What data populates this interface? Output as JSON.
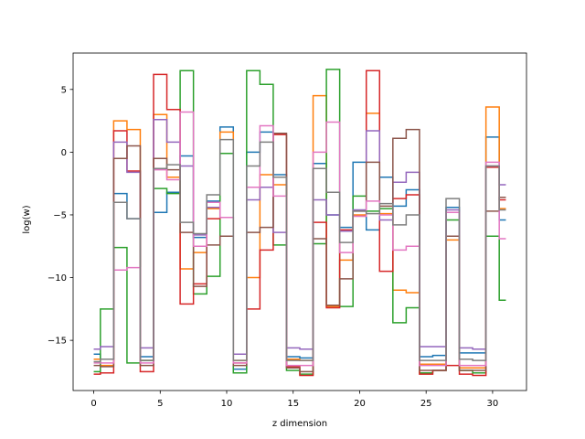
{
  "chart_data": {
    "type": "line",
    "step": "mid",
    "title": "",
    "xlabel": "z dimension",
    "ylabel": "log(w)",
    "xlim": [
      -1.55,
      32.55
    ],
    "ylim": [
      -19,
      7.9
    ],
    "xticks": [
      0,
      5,
      10,
      15,
      20,
      25,
      30
    ],
    "yticks": [
      -15,
      -10,
      -5,
      0,
      5
    ],
    "grid": false,
    "legend": "none",
    "x": [
      0,
      1,
      2,
      3,
      4,
      5,
      6,
      7,
      8,
      9,
      10,
      11,
      12,
      13,
      14,
      15,
      16,
      17,
      18,
      19,
      20,
      21,
      22,
      23,
      24,
      25,
      26,
      27,
      28,
      29,
      30,
      31
    ],
    "series": [
      {
        "color": "#1f77b4",
        "values": [
          -16.1,
          -16.5,
          -3.3,
          -5.3,
          -16.3,
          -4.8,
          -3.2,
          -0.3,
          -6.8,
          -3.9,
          2.0,
          -17.3,
          0.0,
          1.6,
          -1.8,
          -16.3,
          -16.4,
          -0.9,
          -5.0,
          -6.0,
          -0.8,
          -6.2,
          -2.0,
          -4.3,
          -3.0,
          -16.3,
          -16.2,
          -4.4,
          -16.0,
          -16.0,
          1.2,
          -5.4
        ]
      },
      {
        "color": "#ff7f0e",
        "values": [
          -16.5,
          -17.0,
          2.5,
          1.8,
          -16.6,
          3.0,
          -2.0,
          -9.3,
          -8.0,
          -4.5,
          1.6,
          -16.6,
          -10.0,
          -1.8,
          -2.6,
          -16.5,
          -16.6,
          4.5,
          -12.3,
          -8.6,
          -5.0,
          3.1,
          -4.9,
          -11.0,
          -11.2,
          -16.9,
          -16.9,
          -7.0,
          -17.2,
          -17.2,
          3.6,
          -4.5
        ]
      },
      {
        "color": "#2ca02c",
        "values": [
          -17.5,
          -12.5,
          -7.6,
          -16.8,
          -16.6,
          -2.9,
          -3.3,
          6.5,
          -11.3,
          -9.9,
          -0.1,
          -17.6,
          6.5,
          5.4,
          -7.4,
          -17.4,
          -17.7,
          -7.3,
          6.6,
          -12.3,
          -3.5,
          -4.7,
          -4.5,
          -13.6,
          -12.4,
          -17.6,
          -17.4,
          -5.4,
          -17.4,
          -17.6,
          -6.7,
          -11.8
        ]
      },
      {
        "color": "#d62728",
        "values": [
          -17.7,
          -17.6,
          1.7,
          -1.5,
          -17.5,
          6.2,
          3.4,
          -12.1,
          -10.5,
          -5.3,
          -5.2,
          -16.8,
          -12.5,
          -7.8,
          1.4,
          -17.1,
          -17.8,
          -5.6,
          -12.4,
          -6.2,
          -5.1,
          6.5,
          -9.5,
          -3.7,
          -3.4,
          -17.7,
          -17.4,
          -17.0,
          -17.7,
          -17.8,
          -1.2,
          -3.8
        ]
      },
      {
        "color": "#9467bd",
        "values": [
          -15.7,
          -15.5,
          0.8,
          -1.6,
          -15.6,
          2.6,
          0.8,
          -1.1,
          -6.6,
          -4.4,
          -5.2,
          -16.1,
          -3.8,
          -2.8,
          -6.4,
          -15.6,
          -15.7,
          -3.8,
          -5.0,
          -6.3,
          -4.6,
          1.7,
          -5.4,
          -2.4,
          -1.6,
          -15.5,
          -15.5,
          -4.6,
          -15.6,
          -15.7,
          -1.1,
          -2.6
        ]
      },
      {
        "color": "#8c564b",
        "values": [
          -17.0,
          -17.1,
          -0.5,
          0.5,
          -17.0,
          -0.5,
          -1.4,
          -6.4,
          -10.7,
          -7.4,
          -6.7,
          -17.0,
          -6.4,
          -6.0,
          1.5,
          -17.2,
          -17.5,
          -6.9,
          -12.2,
          -10.1,
          -4.7,
          -0.8,
          -4.3,
          1.1,
          1.8,
          -17.4,
          -17.4,
          -6.7,
          -17.4,
          -17.4,
          -4.7,
          -3.6
        ]
      },
      {
        "color": "#e377c2",
        "values": [
          -16.8,
          -16.8,
          -9.4,
          -9.2,
          -16.8,
          -1.4,
          -2.2,
          3.2,
          -7.5,
          -4.0,
          -5.2,
          -16.8,
          -2.8,
          2.1,
          -3.5,
          -17.0,
          -17.0,
          0.0,
          2.4,
          -8.0,
          -5.1,
          -3.9,
          -5.0,
          -7.8,
          -7.5,
          -17.0,
          -17.0,
          -4.8,
          -17.0,
          -17.0,
          -0.8,
          -6.9
        ]
      },
      {
        "color": "#7f7f7f",
        "values": [
          -16.7,
          -16.5,
          -4.0,
          -5.3,
          -16.6,
          -1.3,
          -1.0,
          -5.6,
          -6.5,
          -3.4,
          1.0,
          -16.6,
          -1.1,
          0.8,
          -2.0,
          -16.6,
          -16.6,
          -1.3,
          -3.2,
          -7.2,
          -4.7,
          -4.9,
          -4.1,
          -5.8,
          -5.0,
          -16.6,
          -16.6,
          -3.7,
          -16.5,
          -16.6,
          -1.1,
          -4.6
        ]
      }
    ]
  }
}
